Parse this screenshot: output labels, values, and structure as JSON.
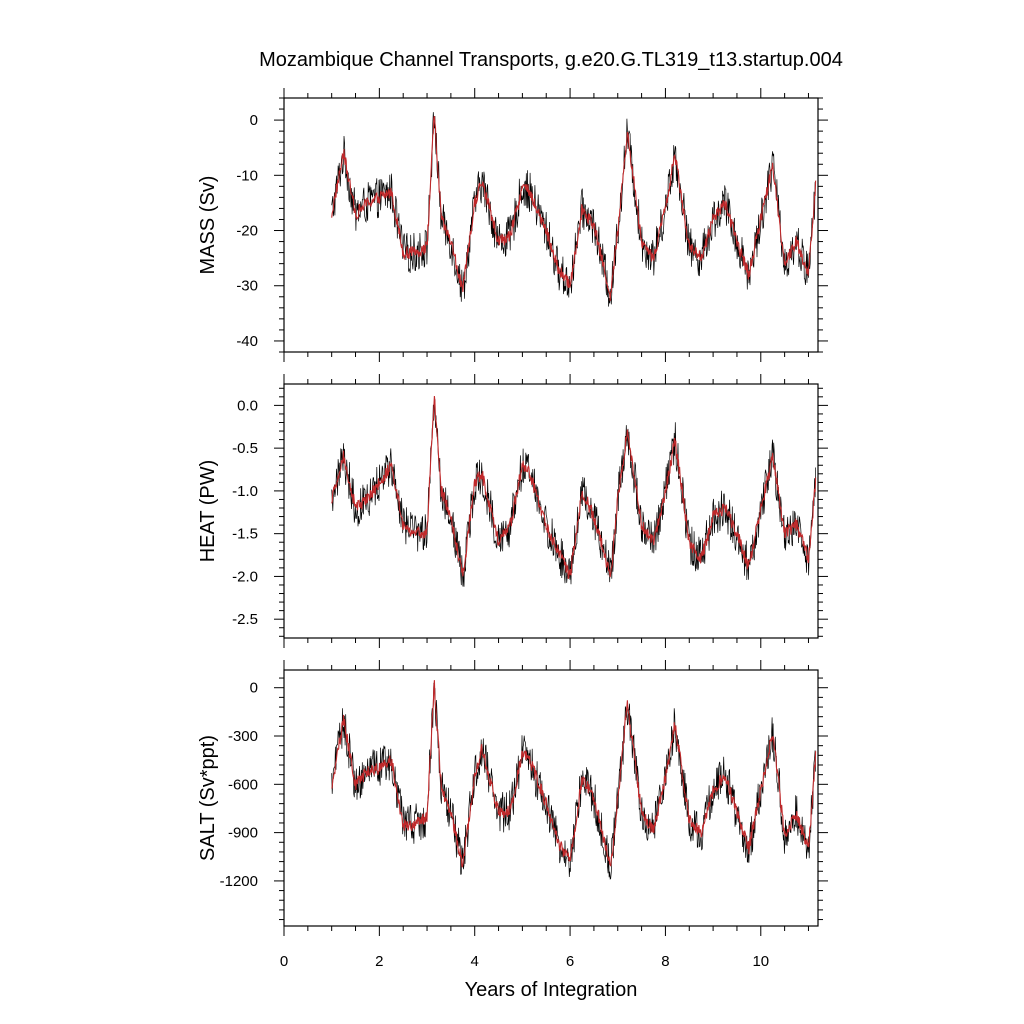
{
  "chart_data": {
    "type": "line",
    "title": "Mozambique Channel Transports, g.e20.G.TL319_t13.startup.004",
    "xlabel": "Years of Integration",
    "xlim": [
      0,
      11.2
    ],
    "x_ticks": [
      0,
      2,
      4,
      6,
      8,
      10
    ],
    "x_tick_labels": [
      "0",
      "2",
      "4",
      "6",
      "8",
      "10"
    ],
    "colors": {
      "raw": "#000000",
      "smoothed": "#c0292b"
    },
    "panels": [
      {
        "ylabel": "MASS (Sv)",
        "ylim": [
          -42,
          4
        ],
        "y_ticks": [
          0,
          -10,
          -20,
          -30,
          -40
        ],
        "y_tick_labels": [
          "0",
          "-10",
          "-20",
          "-30",
          "-40"
        ],
        "x": [
          1.0,
          1.25,
          1.5,
          1.75,
          2.0,
          2.25,
          2.5,
          2.75,
          3.0,
          3.15,
          3.3,
          3.5,
          3.75,
          4.0,
          4.15,
          4.5,
          4.75,
          5.0,
          5.15,
          5.5,
          5.75,
          6.0,
          6.25,
          6.5,
          6.85,
          7.0,
          7.2,
          7.5,
          7.75,
          8.0,
          8.2,
          8.5,
          8.75,
          9.0,
          9.25,
          9.5,
          9.75,
          10.0,
          10.25,
          10.5,
          10.75,
          11.0,
          11.15
        ],
        "values": [
          -17,
          -6,
          -17,
          -15,
          -14,
          -13,
          -24,
          -24,
          -23,
          1,
          -18,
          -22,
          -31,
          -15,
          -11,
          -22,
          -21,
          -12,
          -13,
          -20,
          -27,
          -30,
          -16,
          -19,
          -32,
          -20,
          -2,
          -22,
          -25,
          -16,
          -6,
          -23,
          -25,
          -18,
          -15,
          -22,
          -28,
          -18,
          -8,
          -26,
          -22,
          -28,
          -12
        ]
      },
      {
        "ylabel": "HEAT (PW)",
        "ylim": [
          -2.72,
          0.25
        ],
        "y_ticks": [
          0.0,
          -0.5,
          -1.0,
          -1.5,
          -2.0,
          -2.5
        ],
        "y_tick_labels": [
          "0.0",
          "-0.5",
          "-1.0",
          "-1.5",
          "-2.0",
          "-2.5"
        ],
        "x": [
          1.0,
          1.25,
          1.5,
          1.75,
          2.0,
          2.25,
          2.5,
          2.75,
          3.0,
          3.15,
          3.3,
          3.5,
          3.75,
          4.0,
          4.15,
          4.5,
          4.75,
          5.0,
          5.15,
          5.5,
          5.75,
          6.0,
          6.25,
          6.5,
          6.85,
          7.0,
          7.2,
          7.5,
          7.75,
          8.0,
          8.2,
          8.5,
          8.75,
          9.0,
          9.25,
          9.5,
          9.75,
          10.0,
          10.25,
          10.5,
          10.75,
          11.0,
          11.15
        ],
        "values": [
          -1.1,
          -0.6,
          -1.2,
          -1.1,
          -0.9,
          -0.7,
          -1.4,
          -1.5,
          -1.5,
          0.1,
          -1.0,
          -1.3,
          -2.0,
          -0.9,
          -0.8,
          -1.6,
          -1.4,
          -0.7,
          -0.8,
          -1.4,
          -1.7,
          -2.0,
          -1.0,
          -1.3,
          -2.0,
          -1.1,
          -0.3,
          -1.4,
          -1.6,
          -1.0,
          -0.4,
          -1.6,
          -1.8,
          -1.3,
          -1.2,
          -1.5,
          -1.9,
          -1.2,
          -0.6,
          -1.5,
          -1.4,
          -1.8,
          -0.9
        ]
      },
      {
        "ylabel": "SALT (Sv*ppt)",
        "ylim": [
          -1480,
          110
        ],
        "y_ticks": [
          0,
          -300,
          -600,
          -900,
          -1200
        ],
        "y_tick_labels": [
          "0",
          "-300",
          "-600",
          "-900",
          "-1200"
        ],
        "x": [
          1.0,
          1.25,
          1.5,
          1.75,
          2.0,
          2.25,
          2.5,
          2.75,
          3.0,
          3.15,
          3.3,
          3.5,
          3.75,
          4.0,
          4.15,
          4.5,
          4.75,
          5.0,
          5.15,
          5.5,
          5.75,
          6.0,
          6.25,
          6.5,
          6.85,
          7.0,
          7.2,
          7.5,
          7.75,
          8.0,
          8.2,
          8.5,
          8.75,
          9.0,
          9.25,
          9.5,
          9.75,
          10.0,
          10.25,
          10.5,
          10.75,
          11.0,
          11.15
        ],
        "values": [
          -600,
          -200,
          -600,
          -520,
          -500,
          -450,
          -850,
          -850,
          -800,
          30,
          -620,
          -780,
          -1100,
          -540,
          -380,
          -780,
          -760,
          -400,
          -450,
          -720,
          -960,
          -1080,
          -560,
          -680,
          -1120,
          -700,
          -100,
          -780,
          -880,
          -560,
          -220,
          -820,
          -900,
          -640,
          -540,
          -780,
          -1000,
          -640,
          -280,
          -920,
          -780,
          -1000,
          -420
        ]
      }
    ]
  }
}
